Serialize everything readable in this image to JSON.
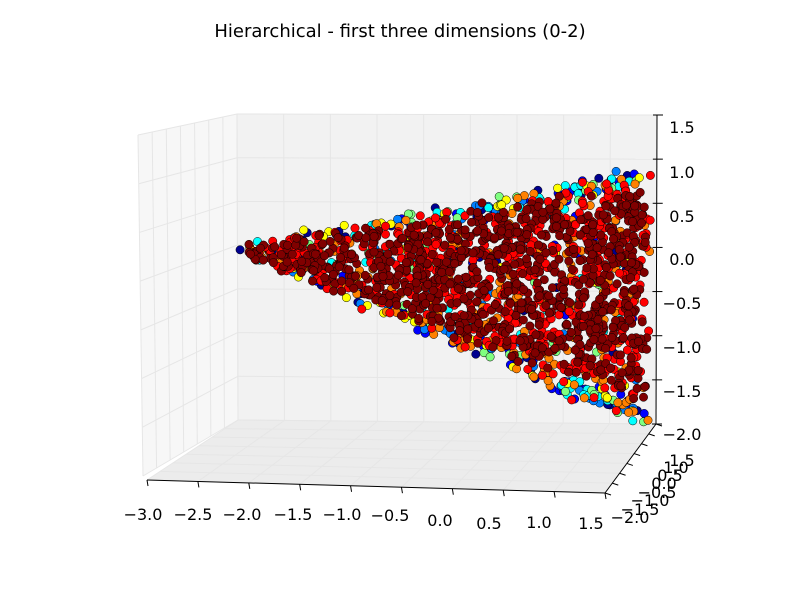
{
  "chart_data": {
    "type": "scatter",
    "title": "Hierarchical - first three dimensions (0-2)",
    "xlabel": "",
    "ylabel": "",
    "zlabel": "",
    "projection": "3d",
    "grid": true,
    "xlim": [
      -3.0,
      1.5
    ],
    "ylim": [
      -2.0,
      1.5
    ],
    "zlim": [
      -2.0,
      1.5
    ],
    "x_ticks": [
      "−3.0",
      "−2.5",
      "−2.0",
      "−1.5",
      "−1.0",
      "−0.5",
      "0.0",
      "0.5",
      "1.0",
      "1.5"
    ],
    "y_ticks": [
      "−2.0",
      "−1.5",
      "−1.0",
      "−0.5",
      "0.0",
      "0.5",
      "1.0",
      "1.5"
    ],
    "z_ticks": [
      "−2.0",
      "−1.5",
      "−1.0",
      "−0.5",
      "0.0",
      "0.5",
      "1.0",
      "1.5"
    ],
    "colormap": [
      "#00008f",
      "#0000ff",
      "#0080ff",
      "#00ffff",
      "#80ff80",
      "#ffff00",
      "#ff8000",
      "#ff0000",
      "#800000"
    ],
    "pane_color": "#f2f2f2",
    "grid_color": "#e6e6e6",
    "point_shape": "wedge",
    "point_x_range": [
      -3.0,
      1.0
    ],
    "point_z_range": [
      -1.6,
      1.1
    ],
    "point_count_estimate": 2000,
    "cluster_extremes": [
      {
        "x": -3.0,
        "z": 0.25
      },
      {
        "x": 0.8,
        "z": 1.1
      },
      {
        "x": 1.0,
        "z": -1.6
      }
    ]
  }
}
